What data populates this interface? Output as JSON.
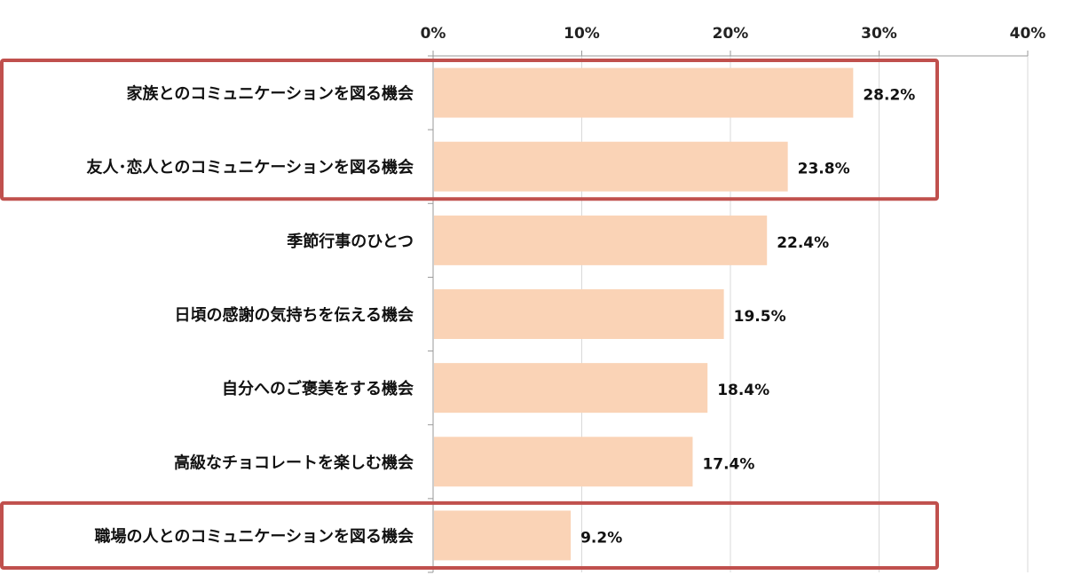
{
  "chart_data": {
    "type": "bar",
    "orientation": "horizontal",
    "categories": [
      "家族とのコミュニケーションを図る機会",
      "友人･恋人とのコミュニケーションを図る機会",
      "季節行事のひとつ",
      "日頃の感謝の気持ちを伝える機会",
      "自分へのご褒美をする機会",
      "高級なチョコレートを楽しむ機会",
      "職場の人とのコミュニケーションを図る機会"
    ],
    "values": [
      28.2,
      23.8,
      22.4,
      19.5,
      18.4,
      17.4,
      9.2
    ],
    "value_labels": [
      "28.2%",
      "23.8%",
      "22.4%",
      "19.5%",
      "18.4%",
      "17.4%",
      "9.2%"
    ],
    "xlim": [
      0,
      40
    ],
    "ticks": [
      0,
      10,
      20,
      30,
      40
    ],
    "tick_labels": [
      "0%",
      "10%",
      "20%",
      "30%",
      "40%"
    ],
    "axis_position": "top",
    "grid": true,
    "bar_color": "#FAD3B6",
    "highlight_color": "#C0504D",
    "highlight_groups": [
      [
        0,
        1
      ],
      [
        6
      ]
    ]
  }
}
